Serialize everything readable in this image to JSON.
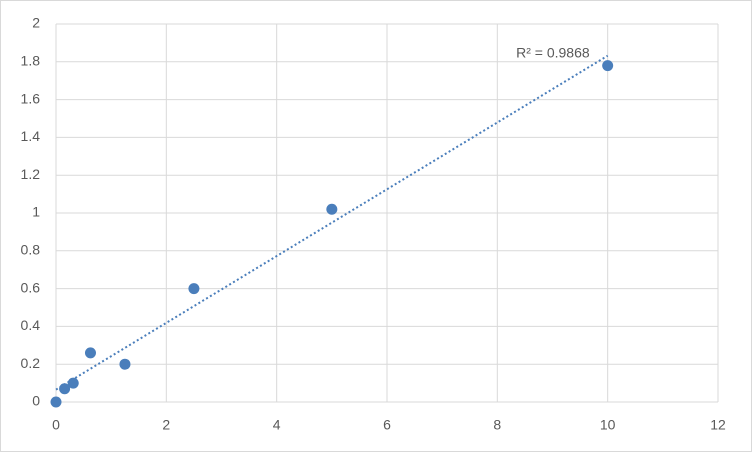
{
  "chart_data": {
    "type": "scatter",
    "x": [
      0,
      0.156,
      0.3125,
      0.625,
      1.25,
      2.5,
      5,
      10
    ],
    "series": [
      {
        "color": "#4a7ebb",
        "values": [
          0,
          0.07,
          0.1,
          0.26,
          0.2,
          0.6,
          1.02,
          1.78
        ]
      }
    ],
    "trendline": "linear",
    "annotation": "R² = 0.9868",
    "xlim": [
      0,
      12
    ],
    "xticks": [
      0,
      2,
      4,
      6,
      8,
      10,
      12
    ],
    "ylim": [
      0,
      2
    ],
    "yticks": [
      0,
      0.2,
      0.4,
      0.6,
      0.8,
      1,
      1.2,
      1.4,
      1.6,
      1.8,
      2
    ],
    "grid": true
  }
}
